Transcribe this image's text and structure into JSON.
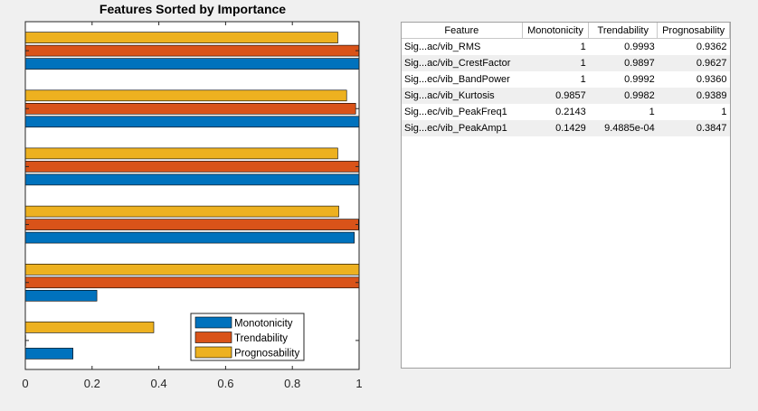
{
  "chart_data": {
    "type": "bar",
    "orientation": "horizontal",
    "title": "Features Sorted by Importance",
    "xlim": [
      0,
      1
    ],
    "xticks": [
      "0",
      "0.2",
      "0.4",
      "0.6",
      "0.8",
      "1"
    ],
    "category_count": 6,
    "series": [
      {
        "name": "Monotonicity",
        "color": "#0072BD",
        "values": [
          1,
          1,
          1,
          0.9857,
          0.2143,
          0.1429
        ]
      },
      {
        "name": "Trendability",
        "color": "#D95319",
        "values": [
          0.9993,
          0.9897,
          0.9992,
          0.9982,
          1,
          0.00094885
        ]
      },
      {
        "name": "Prognosability",
        "color": "#EDB120",
        "values": [
          0.9362,
          0.9627,
          0.936,
          0.9389,
          1,
          0.3847
        ]
      }
    ],
    "legend_position": "lower-right"
  },
  "table": {
    "headers": [
      "Feature",
      "Monotonicity",
      "Trendability",
      "Prognosability"
    ],
    "rows": [
      [
        "Sig...ac/vib_RMS",
        "1",
        "0.9993",
        "0.9362"
      ],
      [
        "Sig...ac/vib_CrestFactor",
        "1",
        "0.9897",
        "0.9627"
      ],
      [
        "Sig...ec/vib_BandPower",
        "1",
        "0.9992",
        "0.9360"
      ],
      [
        "Sig...ac/vib_Kurtosis",
        "0.9857",
        "0.9982",
        "0.9389"
      ],
      [
        "Sig...ec/vib_PeakFreq1",
        "0.2143",
        "1",
        "1"
      ],
      [
        "Sig...ec/vib_PeakAmp1",
        "0.1429",
        "9.4885e-04",
        "0.3847"
      ]
    ]
  }
}
